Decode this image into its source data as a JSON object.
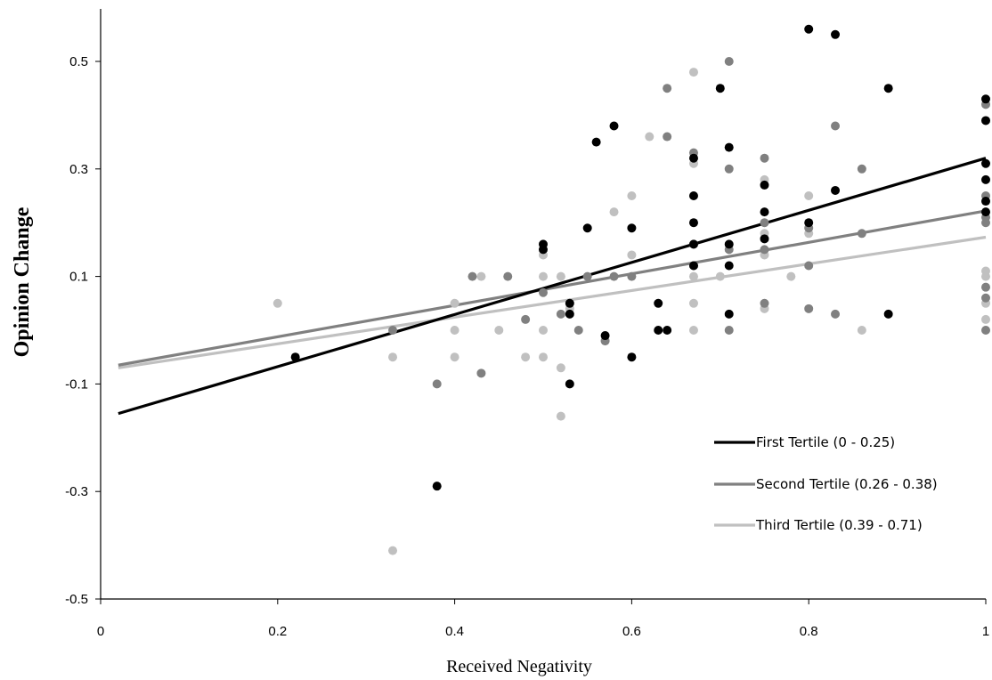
{
  "chart_data": {
    "type": "scatter",
    "title": "",
    "xlabel": "Received Negativity",
    "ylabel": "Opinion Change",
    "xlim": [
      0,
      1
    ],
    "ylim": [
      -0.5,
      0.6
    ],
    "x_ticks": [
      0,
      0.2,
      0.4,
      0.6,
      0.8,
      1
    ],
    "x_tick_labels": [
      "0",
      "0.2",
      "0.4",
      "0.6",
      "0.8",
      "1"
    ],
    "y_ticks": [
      -0.5,
      -0.3,
      -0.1,
      0.1,
      0.3,
      0.5
    ],
    "y_tick_labels": [
      "-0.5",
      "-0.3",
      "-0.1",
      "0.1",
      "0.3",
      "0.5"
    ],
    "grid": false,
    "legend_position": "bottom-right",
    "series": [
      {
        "name": "First Tertile (0 - 0.25)",
        "color": "#000000",
        "trendline": {
          "x": [
            0.02,
            1.0
          ],
          "y": [
            -0.155,
            0.32
          ]
        },
        "points": [
          [
            0.22,
            -0.05
          ],
          [
            0.38,
            -0.29
          ],
          [
            0.5,
            0.16
          ],
          [
            0.5,
            0.15
          ],
          [
            0.53,
            0.05
          ],
          [
            0.53,
            0.03
          ],
          [
            0.53,
            -0.1
          ],
          [
            0.55,
            0.19
          ],
          [
            0.56,
            0.35
          ],
          [
            0.57,
            -0.01
          ],
          [
            0.58,
            0.38
          ],
          [
            0.6,
            0.19
          ],
          [
            0.6,
            -0.05
          ],
          [
            0.63,
            0.05
          ],
          [
            0.63,
            0.0
          ],
          [
            0.64,
            0.0
          ],
          [
            0.67,
            0.32
          ],
          [
            0.67,
            0.25
          ],
          [
            0.67,
            0.2
          ],
          [
            0.67,
            0.16
          ],
          [
            0.67,
            0.12
          ],
          [
            0.7,
            0.45
          ],
          [
            0.71,
            0.34
          ],
          [
            0.71,
            0.16
          ],
          [
            0.71,
            0.12
          ],
          [
            0.71,
            0.03
          ],
          [
            0.75,
            0.27
          ],
          [
            0.75,
            0.22
          ],
          [
            0.75,
            0.17
          ],
          [
            0.8,
            0.56
          ],
          [
            0.8,
            0.2
          ],
          [
            0.83,
            0.55
          ],
          [
            0.83,
            0.26
          ],
          [
            0.89,
            0.45
          ],
          [
            0.89,
            0.03
          ],
          [
            1.0,
            0.43
          ],
          [
            1.0,
            0.39
          ],
          [
            1.0,
            0.31
          ],
          [
            1.0,
            0.28
          ],
          [
            1.0,
            0.24
          ],
          [
            1.0,
            0.22
          ]
        ]
      },
      {
        "name": "Second Tertile (0.26 - 0.38)",
        "color": "#808080",
        "trendline": {
          "x": [
            0.02,
            1.0
          ],
          "y": [
            -0.065,
            0.222
          ]
        },
        "points": [
          [
            0.33,
            0.0
          ],
          [
            0.38,
            -0.1
          ],
          [
            0.42,
            0.1
          ],
          [
            0.43,
            -0.08
          ],
          [
            0.46,
            0.1
          ],
          [
            0.48,
            0.02
          ],
          [
            0.5,
            0.07
          ],
          [
            0.52,
            0.03
          ],
          [
            0.54,
            0.0
          ],
          [
            0.55,
            0.1
          ],
          [
            0.57,
            -0.02
          ],
          [
            0.58,
            0.1
          ],
          [
            0.6,
            0.1
          ],
          [
            0.64,
            0.45
          ],
          [
            0.64,
            0.36
          ],
          [
            0.67,
            0.33
          ],
          [
            0.67,
            0.16
          ],
          [
            0.67,
            0.12
          ],
          [
            0.71,
            0.5
          ],
          [
            0.71,
            0.3
          ],
          [
            0.71,
            0.15
          ],
          [
            0.71,
            0.0
          ],
          [
            0.75,
            0.32
          ],
          [
            0.75,
            0.2
          ],
          [
            0.75,
            0.15
          ],
          [
            0.75,
            0.05
          ],
          [
            0.8,
            0.19
          ],
          [
            0.8,
            0.12
          ],
          [
            0.8,
            0.04
          ],
          [
            0.83,
            0.38
          ],
          [
            0.83,
            0.03
          ],
          [
            0.86,
            0.3
          ],
          [
            0.86,
            0.18
          ],
          [
            1.0,
            0.42
          ],
          [
            1.0,
            0.25
          ],
          [
            1.0,
            0.21
          ],
          [
            1.0,
            0.2
          ],
          [
            1.0,
            0.08
          ],
          [
            1.0,
            0.06
          ],
          [
            1.0,
            0.0
          ]
        ]
      },
      {
        "name": "Third Tertile (0.39 - 0.71)",
        "color": "#c0c0c0",
        "trendline": {
          "x": [
            0.02,
            1.0
          ],
          "y": [
            -0.07,
            0.173
          ]
        },
        "points": [
          [
            0.2,
            0.05
          ],
          [
            0.33,
            -0.05
          ],
          [
            0.33,
            -0.41
          ],
          [
            0.4,
            0.05
          ],
          [
            0.4,
            0.0
          ],
          [
            0.4,
            -0.05
          ],
          [
            0.43,
            0.1
          ],
          [
            0.45,
            0.0
          ],
          [
            0.48,
            -0.05
          ],
          [
            0.5,
            0.14
          ],
          [
            0.5,
            0.1
          ],
          [
            0.5,
            0.0
          ],
          [
            0.5,
            -0.05
          ],
          [
            0.52,
            0.1
          ],
          [
            0.52,
            -0.07
          ],
          [
            0.52,
            -0.16
          ],
          [
            0.53,
            0.04
          ],
          [
            0.58,
            0.22
          ],
          [
            0.6,
            0.25
          ],
          [
            0.6,
            0.14
          ],
          [
            0.62,
            0.36
          ],
          [
            0.67,
            0.48
          ],
          [
            0.67,
            0.31
          ],
          [
            0.67,
            0.1
          ],
          [
            0.67,
            0.05
          ],
          [
            0.67,
            0.0
          ],
          [
            0.7,
            0.1
          ],
          [
            0.75,
            0.28
          ],
          [
            0.75,
            0.18
          ],
          [
            0.75,
            0.14
          ],
          [
            0.75,
            0.04
          ],
          [
            0.78,
            0.1
          ],
          [
            0.8,
            0.25
          ],
          [
            0.8,
            0.18
          ],
          [
            0.86,
            0.0
          ],
          [
            1.0,
            0.11
          ],
          [
            1.0,
            0.1
          ],
          [
            1.0,
            0.05
          ],
          [
            1.0,
            0.02
          ]
        ]
      }
    ]
  }
}
